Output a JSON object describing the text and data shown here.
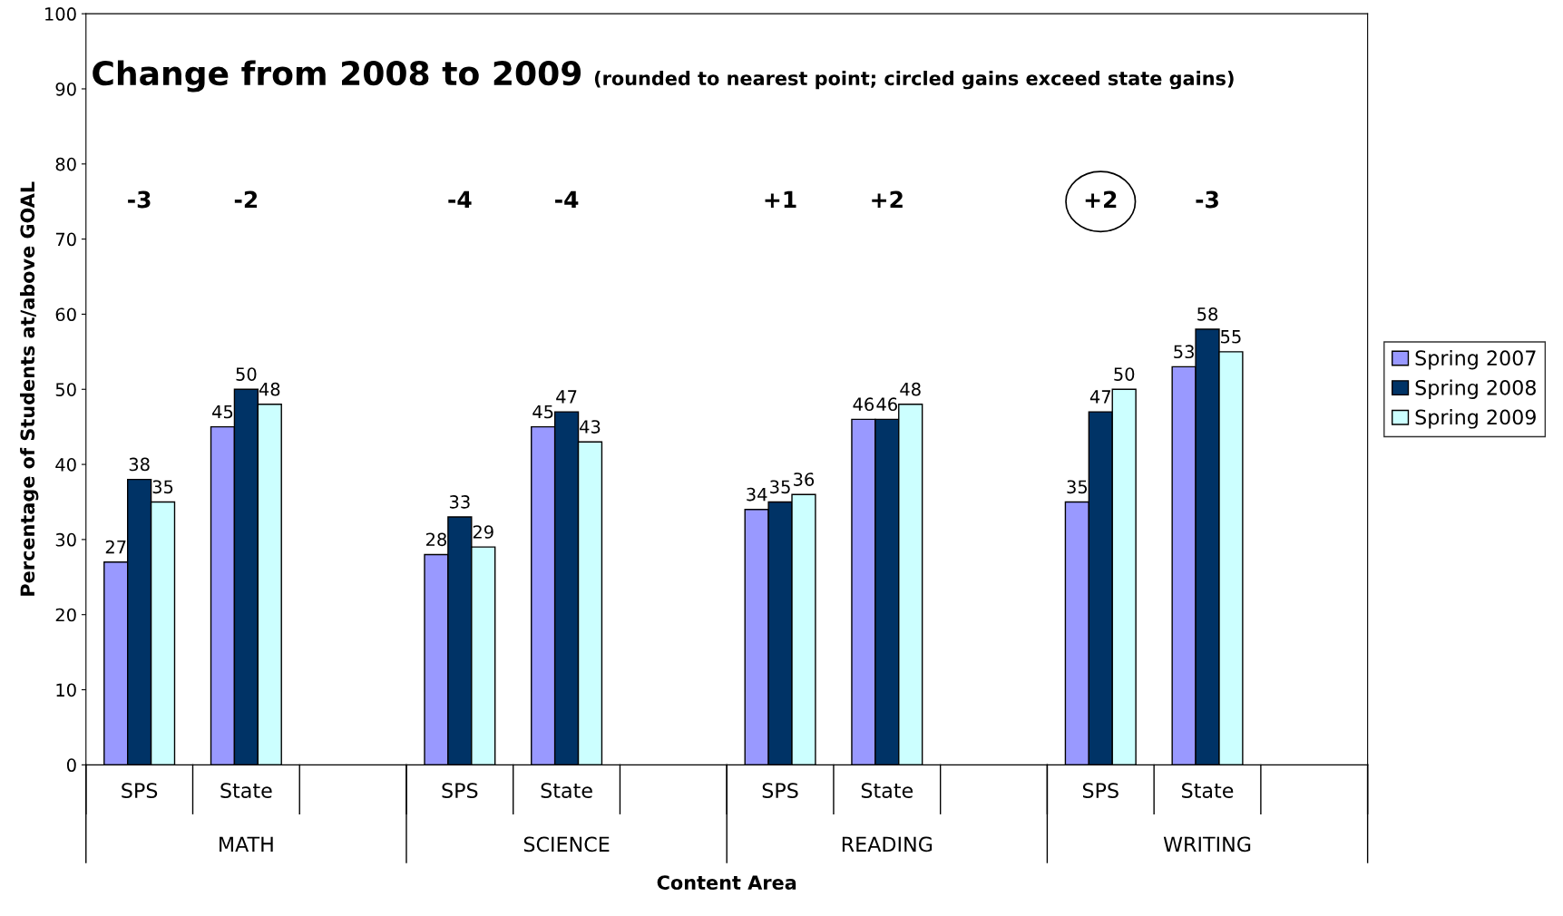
{
  "chart_data": {
    "type": "bar",
    "title": "Change from 2008 to 2009",
    "subtitle": "(rounded to nearest point; circled gains exceed state gains)",
    "xlabel": "Content Area",
    "ylabel": "Percentage of Students at/above GOAL",
    "categories": [
      "SPS",
      "State",
      null,
      "SPS",
      "State",
      null,
      "SPS",
      "State",
      null,
      "SPS",
      "State",
      null
    ],
    "series": [
      {
        "name": "Spring 2007",
        "color": "#9999ff",
        "values": [
          27,
          45,
          null,
          28,
          45,
          null,
          34,
          46,
          null,
          35,
          53,
          null
        ]
      },
      {
        "name": "Spring 2008",
        "color": "#003366",
        "values": [
          38,
          50,
          null,
          33,
          47,
          null,
          35,
          46,
          null,
          47,
          58,
          null
        ]
      },
      {
        "name": "Spring 2009",
        "color": "#ccffff",
        "values": [
          35,
          48,
          null,
          29,
          43,
          null,
          36,
          48,
          null,
          50,
          55,
          null
        ]
      }
    ],
    "annotations": [
      "-3",
      "-2",
      "-4",
      "-4",
      "+1",
      "+2",
      "+2",
      "-3",
      "MATH",
      "SCIENCE",
      "READING",
      "WRITING"
    ],
    "ylim": [
      0,
      100
    ],
    "yticks": [
      0,
      10,
      20,
      30,
      40,
      50,
      60,
      70,
      80,
      90,
      100
    ],
    "grid": false,
    "legend": "right",
    "data_labels": true
  }
}
